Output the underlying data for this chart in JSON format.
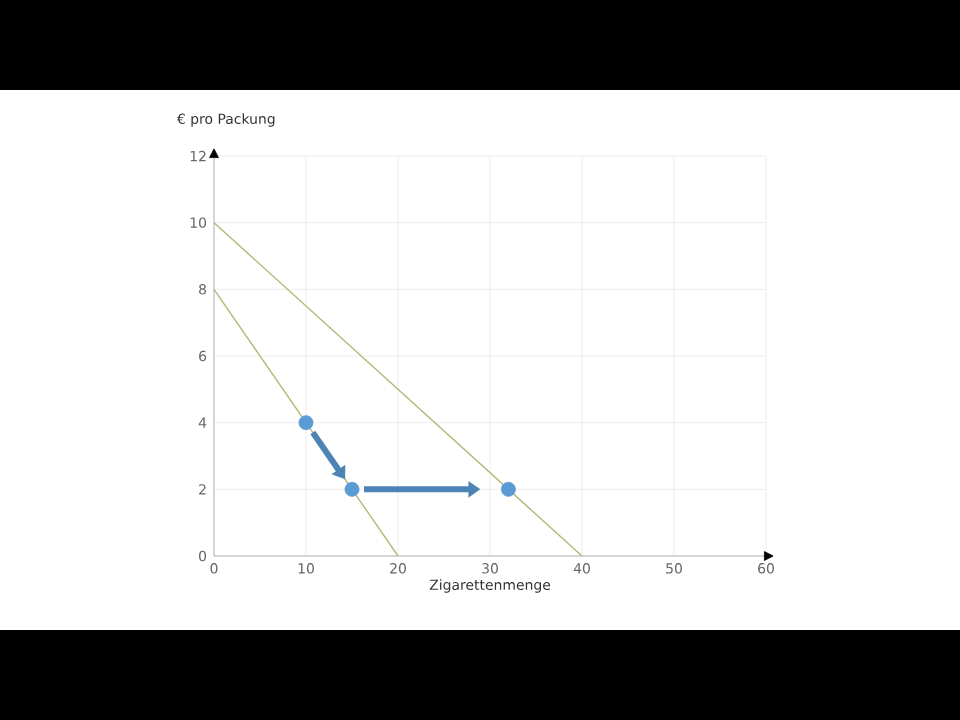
{
  "chart_data": {
    "type": "line",
    "xlabel": "Zigarettenmenge",
    "ylabel": "€ pro Packung",
    "xlim": [
      0,
      60
    ],
    "ylim": [
      0,
      12
    ],
    "xticks": [
      0,
      10,
      20,
      30,
      40,
      50,
      60
    ],
    "yticks": [
      0,
      2,
      4,
      6,
      8,
      10,
      12
    ],
    "grid": true,
    "series": [
      {
        "x": [
          0,
          40
        ],
        "values": [
          10,
          0
        ],
        "color": "#b3b878"
      },
      {
        "x": [
          0,
          20
        ],
        "values": [
          8,
          0
        ],
        "color": "#b3b878"
      },
      {
        "type": "scatter",
        "marker": "circle",
        "x": [
          10,
          15,
          32
        ],
        "values": [
          4,
          2,
          2
        ],
        "color": "#5b9bd5"
      }
    ]
  }
}
